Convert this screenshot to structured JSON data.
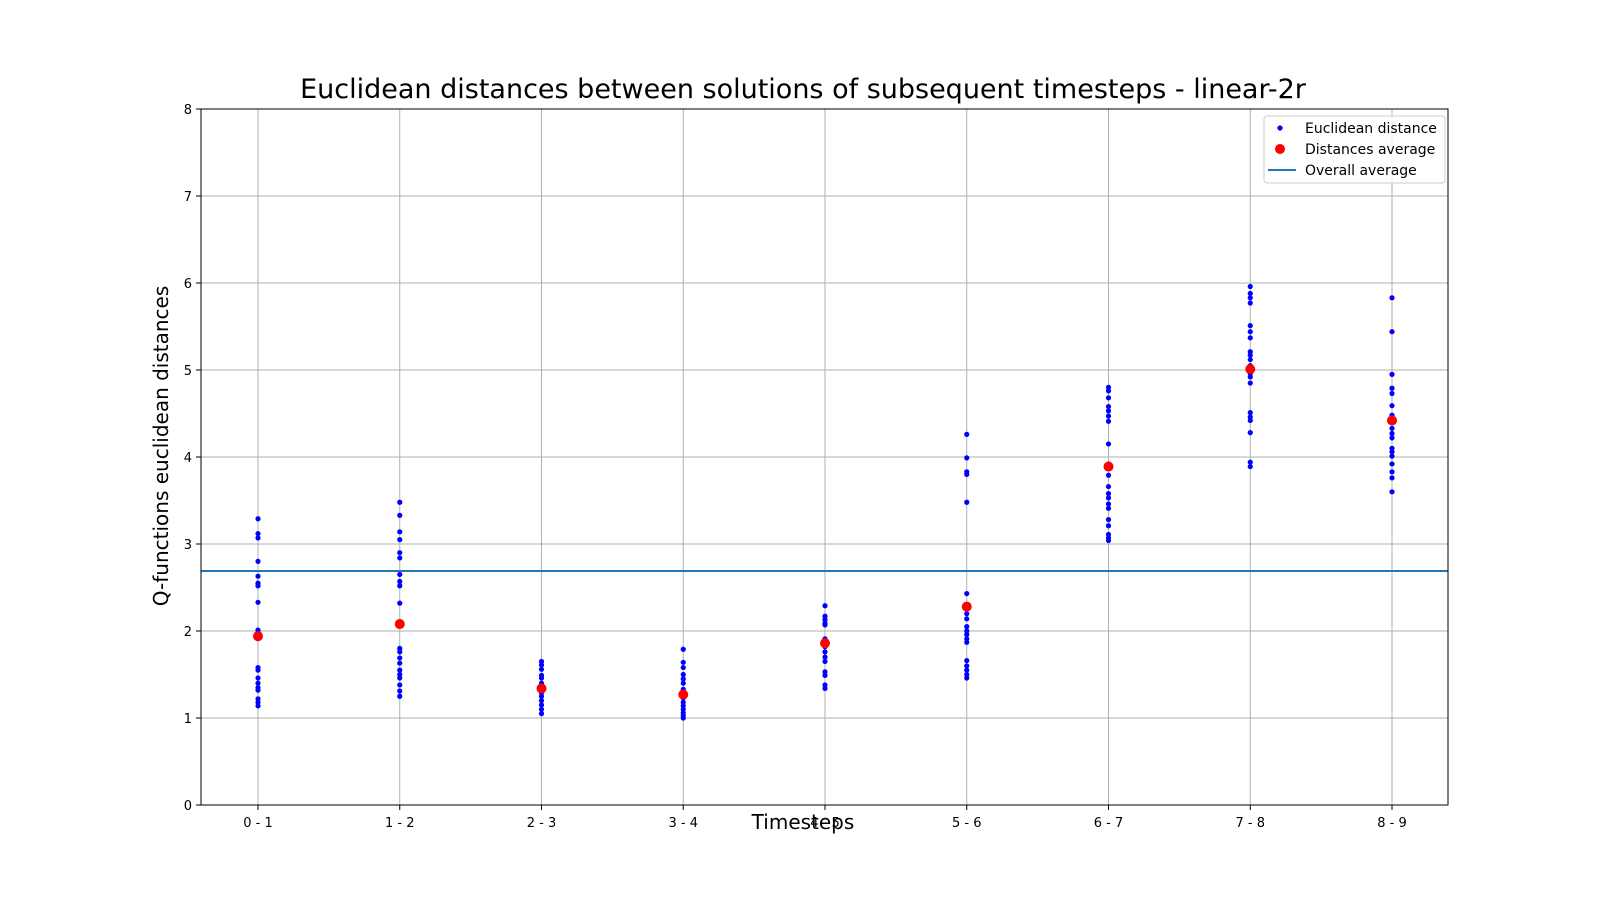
{
  "chart_data": {
    "type": "scatter",
    "title": "Euclidean distances between solutions of subsequent timesteps - linear-2r",
    "xlabel": "Timesteps",
    "ylabel": "Q-functions euclidean distances",
    "categories": [
      "0 - 1",
      "1 - 2",
      "2 - 3",
      "3 - 4",
      "4 - 5",
      "5 - 6",
      "6 - 7",
      "7 - 8",
      "8 - 9"
    ],
    "ylim": [
      0,
      8
    ],
    "yticks": [
      0,
      1,
      2,
      3,
      4,
      5,
      6,
      7,
      8
    ],
    "grid": true,
    "legend_position": "top-right",
    "colors": {
      "points": "#0000ff",
      "average": "#ff0000",
      "overall": "#1f77b4"
    },
    "series": [
      {
        "name": "Euclidean distance",
        "kind": "points",
        "values": [
          [
            3.29,
            3.12,
            3.07,
            2.8,
            2.63,
            2.55,
            2.52,
            2.33,
            2.01,
            1.98,
            1.58,
            1.55,
            1.46,
            1.4,
            1.35,
            1.32,
            1.22,
            1.18,
            1.14
          ],
          [
            3.48,
            3.33,
            3.14,
            3.05,
            2.9,
            2.84,
            2.65,
            2.57,
            2.52,
            2.32,
            1.8,
            1.76,
            1.69,
            1.63,
            1.55,
            1.5,
            1.46,
            1.38,
            1.31,
            1.25
          ],
          [
            1.65,
            1.61,
            1.56,
            1.49,
            1.46,
            1.4,
            1.35,
            1.29,
            1.25,
            1.2,
            1.15,
            1.1,
            1.05
          ],
          [
            1.79,
            1.64,
            1.58,
            1.5,
            1.45,
            1.4,
            1.33,
            1.23,
            1.18,
            1.14,
            1.1,
            1.06,
            1.03,
            1.0
          ],
          [
            2.29,
            2.17,
            2.13,
            2.09,
            2.07,
            1.91,
            1.86,
            1.82,
            1.76,
            1.7,
            1.65,
            1.53,
            1.49,
            1.38,
            1.34
          ],
          [
            4.26,
            3.99,
            3.83,
            3.8,
            3.48,
            2.43,
            2.26,
            2.2,
            2.14,
            2.05,
            2.0,
            1.96,
            1.91,
            1.87,
            1.66,
            1.6,
            1.55,
            1.5,
            1.46
          ],
          [
            4.8,
            4.76,
            4.68,
            4.58,
            4.53,
            4.47,
            4.41,
            4.15,
            3.92,
            3.79,
            3.66,
            3.58,
            3.53,
            3.46,
            3.41,
            3.28,
            3.21,
            3.11,
            3.07,
            3.04
          ],
          [
            5.96,
            5.88,
            5.83,
            5.77,
            5.51,
            5.44,
            5.37,
            5.21,
            5.17,
            5.12,
            5.05,
            4.96,
            4.92,
            4.85,
            4.51,
            4.46,
            4.42,
            4.28,
            3.94,
            3.89
          ],
          [
            5.83,
            5.44,
            4.95,
            4.79,
            4.73,
            4.59,
            4.48,
            4.33,
            4.27,
            4.22,
            4.1,
            4.06,
            4.01,
            3.92,
            3.83,
            3.76,
            3.6
          ]
        ]
      },
      {
        "name": "Distances average",
        "kind": "average",
        "values": [
          1.94,
          2.08,
          1.34,
          1.27,
          1.86,
          2.28,
          3.89,
          5.01,
          4.42
        ]
      },
      {
        "name": "Overall average",
        "kind": "hline",
        "value": 2.69
      }
    ]
  }
}
